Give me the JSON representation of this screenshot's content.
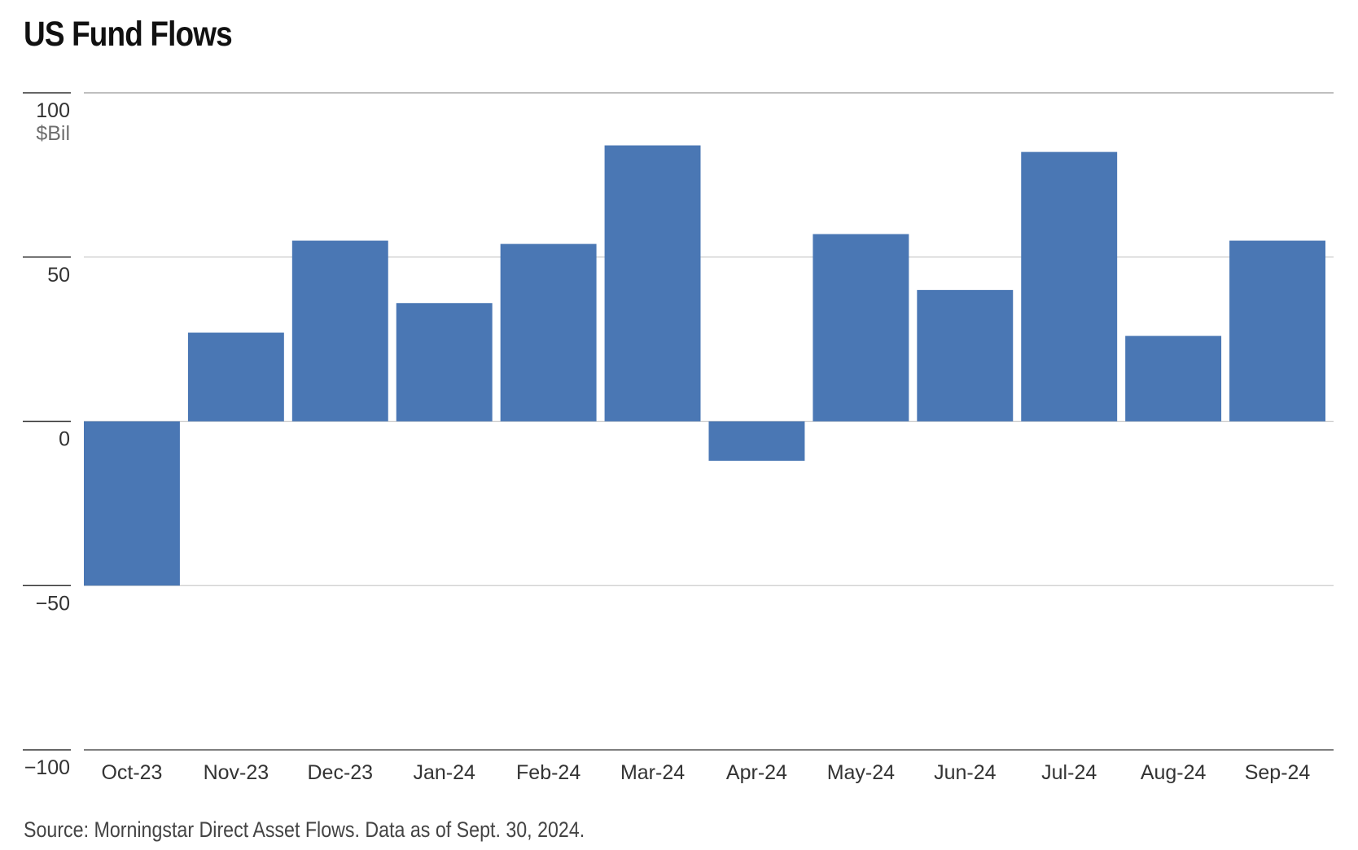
{
  "title": "US Fund Flows",
  "source": "Source: Morningstar Direct Asset Flows. Data as of Sept. 30, 2024.",
  "colors": {
    "bar": "#4a77b4",
    "grid": "#cccccc",
    "axis": "#333333",
    "text": "#333333",
    "unit": "#6e6e6e"
  },
  "chart_data": {
    "type": "bar",
    "title": "US Fund Flows",
    "categories": [
      "Oct-23",
      "Nov-23",
      "Dec-23",
      "Jan-24",
      "Feb-24",
      "Mar-24",
      "Apr-24",
      "May-24",
      "Jun-24",
      "Jul-24",
      "Aug-24",
      "Sep-24"
    ],
    "values": [
      -50,
      27,
      55,
      36,
      54,
      84,
      -12,
      57,
      40,
      82,
      26,
      55
    ],
    "ylabel": "$Bil",
    "yticks": [
      100,
      50,
      0,
      -50,
      -100
    ],
    "ytick_labels": [
      "100",
      "50",
      "0",
      "−50",
      "−100"
    ],
    "ylim": [
      -100,
      100
    ],
    "grid": true,
    "legend": "none"
  }
}
